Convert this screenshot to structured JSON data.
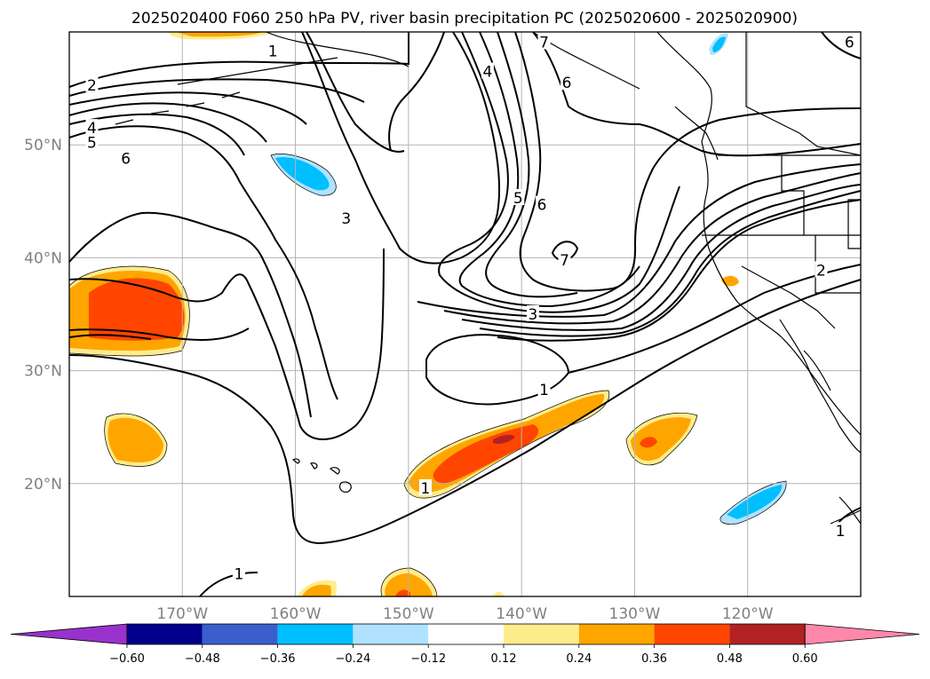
{
  "chart_data": {
    "type": "contour",
    "title": "2025020400 F060 250 hPa PV, river basin precipitation PC (2025020600 - 2025020900)",
    "map_extent": {
      "lon": [
        -180,
        -110
      ],
      "lat": [
        10,
        60
      ]
    },
    "grid": true,
    "lat_ticks": [
      {
        "value": 20,
        "label": "20°N"
      },
      {
        "value": 30,
        "label": "30°N"
      },
      {
        "value": 40,
        "label": "40°N"
      },
      {
        "value": 50,
        "label": "50°N"
      }
    ],
    "lon_ticks": [
      {
        "value": -170,
        "label": "170°W"
      },
      {
        "value": -160,
        "label": "160°W"
      },
      {
        "value": -150,
        "label": "150°W"
      },
      {
        "value": -140,
        "label": "140°W"
      },
      {
        "value": -130,
        "label": "130°W"
      },
      {
        "value": -120,
        "label": "120°W"
      }
    ],
    "colorbar": {
      "extend": "both",
      "boundaries": [
        "−0.60",
        "−0.48",
        "−0.36",
        "−0.24",
        "−0.12",
        "0.12",
        "0.24",
        "0.36",
        "0.48",
        "0.60"
      ],
      "colors": [
        "#9932cc",
        "#00008b",
        "#3a5fcd",
        "#00bfff",
        "#b0e2ff",
        "#ffffff",
        "#ffec8b",
        "#ffa500",
        "#ff4500",
        "#b22222",
        "#ff88aa"
      ]
    },
    "pv_contour_labels": [
      {
        "text": "1",
        "lon": -162.0,
        "lat": 58.3
      },
      {
        "text": "2",
        "lon": -178.0,
        "lat": 55.3
      },
      {
        "text": "4",
        "lon": -178.0,
        "lat": 51.5
      },
      {
        "text": "5",
        "lon": -178.0,
        "lat": 50.2
      },
      {
        "text": "6",
        "lon": -175.0,
        "lat": 48.8
      },
      {
        "text": "3",
        "lon": -155.5,
        "lat": 43.5
      },
      {
        "text": "4",
        "lon": -143.0,
        "lat": 56.5
      },
      {
        "text": "5",
        "lon": -140.3,
        "lat": 45.3
      },
      {
        "text": "6",
        "lon": -138.2,
        "lat": 44.7
      },
      {
        "text": "6",
        "lon": -136.0,
        "lat": 55.5
      },
      {
        "text": "7",
        "lon": -138.0,
        "lat": 59.1
      },
      {
        "text": "7",
        "lon": -136.2,
        "lat": 39.8
      },
      {
        "text": "3",
        "lon": -139.0,
        "lat": 35.0
      },
      {
        "text": "2",
        "lon": -113.5,
        "lat": 38.9
      },
      {
        "text": "6",
        "lon": -111.0,
        "lat": 59.1
      },
      {
        "text": "1",
        "lon": -138.0,
        "lat": 28.3
      },
      {
        "text": "1",
        "lon": -148.5,
        "lat": 19.6
      },
      {
        "text": "1",
        "lon": -165.0,
        "lat": 12.0
      },
      {
        "text": "1",
        "lon": -111.8,
        "lat": 15.8
      }
    ]
  },
  "icons": [
    "dateline-pacific-map"
  ]
}
